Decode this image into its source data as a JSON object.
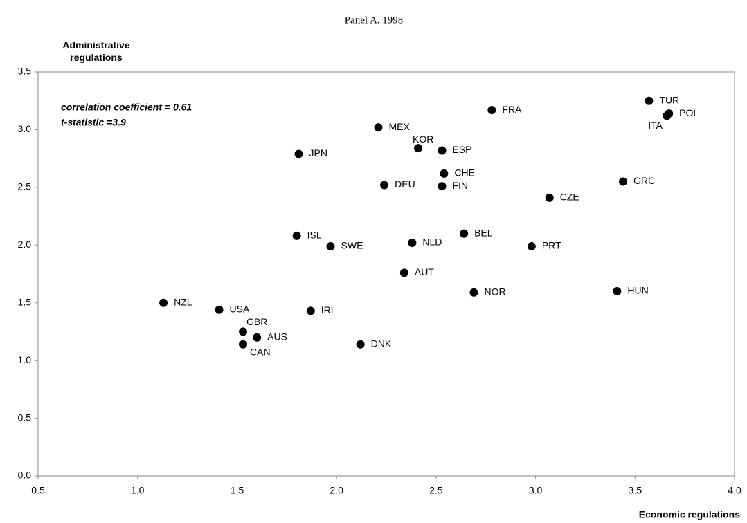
{
  "chart_data": {
    "type": "scatter",
    "title": "Panel A. 1998",
    "x_label": "Economic regulations",
    "y_label": "Administrative regulations",
    "annotations": [
      "correlation coefficient = 0.61",
      "t-statistic =3.9"
    ],
    "point_labels": [
      "NZL",
      "USA",
      "GBR",
      "AUS",
      "CAN",
      "JPN",
      "ISL",
      "SWE",
      "IRL",
      "MEX",
      "DEU",
      "KOR",
      "NLD",
      "AUT",
      "DNK",
      "ESP",
      "CHE",
      "FIN",
      "BEL",
      "NOR",
      "FRA",
      "PRT",
      "CZE",
      "GRC",
      "HUN",
      "TUR",
      "POL",
      "ITA"
    ],
    "x": [
      1.13,
      1.41,
      1.53,
      1.6,
      1.53,
      1.81,
      1.8,
      1.97,
      1.87,
      2.21,
      2.24,
      2.41,
      2.38,
      2.34,
      2.12,
      2.53,
      2.54,
      2.53,
      2.64,
      2.69,
      2.78,
      2.98,
      3.07,
      3.44,
      3.41,
      3.57,
      3.67,
      3.66
    ],
    "values": [
      1.5,
      1.44,
      1.25,
      1.2,
      1.14,
      2.79,
      2.08,
      1.99,
      1.43,
      3.02,
      2.52,
      2.84,
      2.02,
      1.76,
      1.14,
      2.82,
      2.62,
      2.51,
      2.1,
      1.59,
      3.17,
      1.99,
      2.41,
      2.55,
      1.6,
      3.25,
      3.14,
      3.12
    ],
    "color": "#000000",
    "xlim": [
      0.5,
      4.0
    ],
    "xticks": [
      0.5,
      {
        "value": 1,
        "label": "1.0"
      },
      1.5,
      {
        "value": 2,
        "label": "2.0"
      },
      2.5,
      {
        "value": 3,
        "label": "3.0"
      },
      3.5,
      {
        "value": 4,
        "label": "4.0"
      }
    ],
    "ylim": [
      0,
      3.5
    ],
    "yticks": [
      {
        "value": 0,
        "label": "0.0"
      },
      0.5,
      {
        "value": 1,
        "label": "1.0"
      },
      1.5,
      {
        "value": 2,
        "label": "2.0"
      },
      2.5,
      {
        "value": 3,
        "label": "3.0"
      },
      3.5
    ],
    "grid": false
  }
}
